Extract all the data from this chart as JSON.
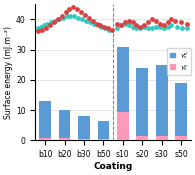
{
  "categories": [
    "b10",
    "b20",
    "b30",
    "b50",
    "s10",
    "s20",
    "s30",
    "s50"
  ],
  "bar_d": [
    13,
    10,
    8,
    6.5,
    31,
    24,
    25,
    19
  ],
  "bar_p": [
    0.8,
    0.8,
    0.6,
    0.6,
    9.5,
    1.5,
    1.5,
    1.5
  ],
  "bar_color_d": "#5B9BD5",
  "bar_color_p": "#FF99BB",
  "teal_color": "#2ECBBE",
  "red_color": "#D94040",
  "ylabel": "Surface energy (mJ.m⁻²)",
  "xlabel": "Coating",
  "ylim": [
    0,
    45
  ],
  "yticks": [
    0,
    10,
    20,
    30,
    40
  ],
  "figsize": [
    1.95,
    1.75
  ],
  "dpi": 100,
  "left_teal_x": [
    -0.35,
    -0.2,
    -0.05,
    0.1,
    0.3,
    0.5,
    0.7,
    0.9,
    1.1,
    1.3,
    1.5,
    1.7,
    1.9,
    2.1,
    2.3,
    2.5,
    2.7,
    2.9,
    3.1,
    3.3
  ],
  "left_teal_y": [
    37,
    37.5,
    38,
    38.5,
    39,
    39.5,
    40,
    40.5,
    41,
    41,
    41,
    40.5,
    40,
    39.5,
    39,
    38.5,
    38,
    37.5,
    37,
    36.5
  ],
  "left_red_x": [
    -0.35,
    -0.15,
    0.05,
    0.25,
    0.45,
    0.65,
    0.85,
    1.05,
    1.25,
    1.45,
    1.65,
    1.85,
    2.05,
    2.25,
    2.45,
    2.65,
    2.85,
    3.05,
    3.25,
    3.45
  ],
  "left_red_y": [
    36,
    36.5,
    37,
    38,
    39,
    40,
    41,
    42.5,
    43.5,
    44,
    43.5,
    42.5,
    41.5,
    40.5,
    39.5,
    38.5,
    38,
    37.5,
    37,
    36.5
  ],
  "right_teal_x": [
    3.7,
    3.9,
    4.1,
    4.3,
    4.5,
    4.7,
    4.9,
    5.1,
    5.3,
    5.5,
    5.7,
    5.9,
    6.1,
    6.3,
    6.5,
    6.8,
    7.05,
    7.3
  ],
  "right_teal_y": [
    37,
    38,
    38.5,
    38,
    37.5,
    37,
    37,
    37.5,
    37,
    37,
    37.5,
    37.5,
    37,
    37.5,
    38,
    37.5,
    37,
    37
  ],
  "right_red_x": [
    3.7,
    3.9,
    4.1,
    4.3,
    4.5,
    4.7,
    4.9,
    5.1,
    5.3,
    5.5,
    5.7,
    5.9,
    6.1,
    6.3,
    6.5,
    6.7,
    7.0,
    7.3
  ],
  "right_red_y": [
    38.5,
    38,
    39,
    39.5,
    39,
    38,
    37.5,
    38,
    39,
    40,
    39.5,
    38.5,
    38,
    39,
    40,
    39.5,
    39,
    38.5
  ]
}
